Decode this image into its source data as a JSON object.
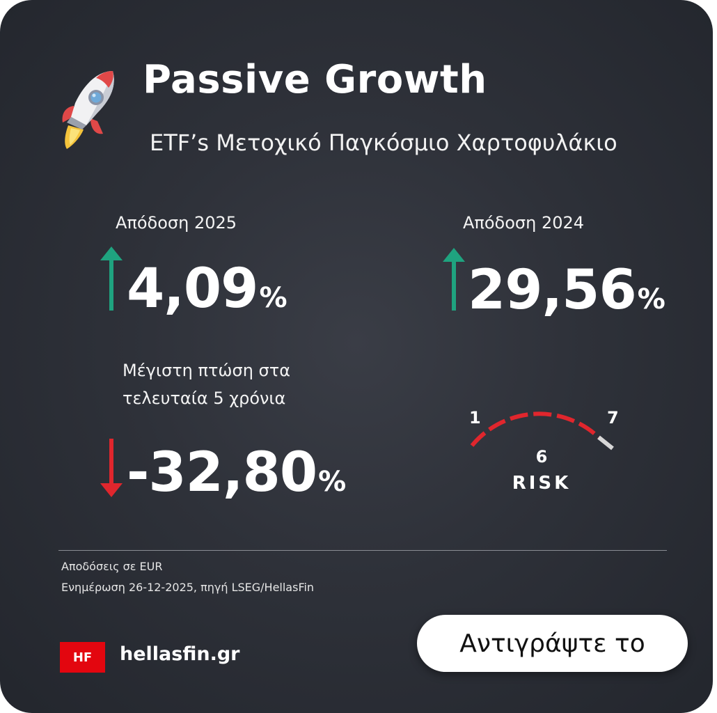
{
  "header": {
    "title": "Passive Growth",
    "subtitle": "ETF’s Μετοχικό Παγκόσμιο Χαρτοφυλάκιο",
    "icon": "rocket-icon"
  },
  "stats": {
    "return_2025": {
      "label": "Απόδοση 2025",
      "value": "4,09",
      "unit": "%",
      "direction": "up"
    },
    "return_2024": {
      "label": "Απόδοση 2024",
      "value": "29,56",
      "unit": "%",
      "direction": "up"
    },
    "max_drawdown": {
      "label_line1": "Μέγιστη πτώση στα",
      "label_line2": "τελευταία 5 χρόνια",
      "value": "-32,80",
      "unit": "%",
      "direction": "down"
    }
  },
  "risk": {
    "min": "1",
    "max": "7",
    "level": "6",
    "label": "RISK"
  },
  "footer": {
    "line1": "Αποδόσεις σε EUR",
    "line2": "Ενημέρωση 26-12-2025, πηγή LSEG/HellasFin",
    "logo_text": "HF",
    "site": "hellasfin.gr",
    "copy_button": "Αντιγράψτε το"
  },
  "colors": {
    "up": "#1fa37f",
    "down": "#e0262d",
    "gauge_active": "#e0262d",
    "gauge_inactive": "#d7d7d7",
    "brand": "#e3060f"
  }
}
